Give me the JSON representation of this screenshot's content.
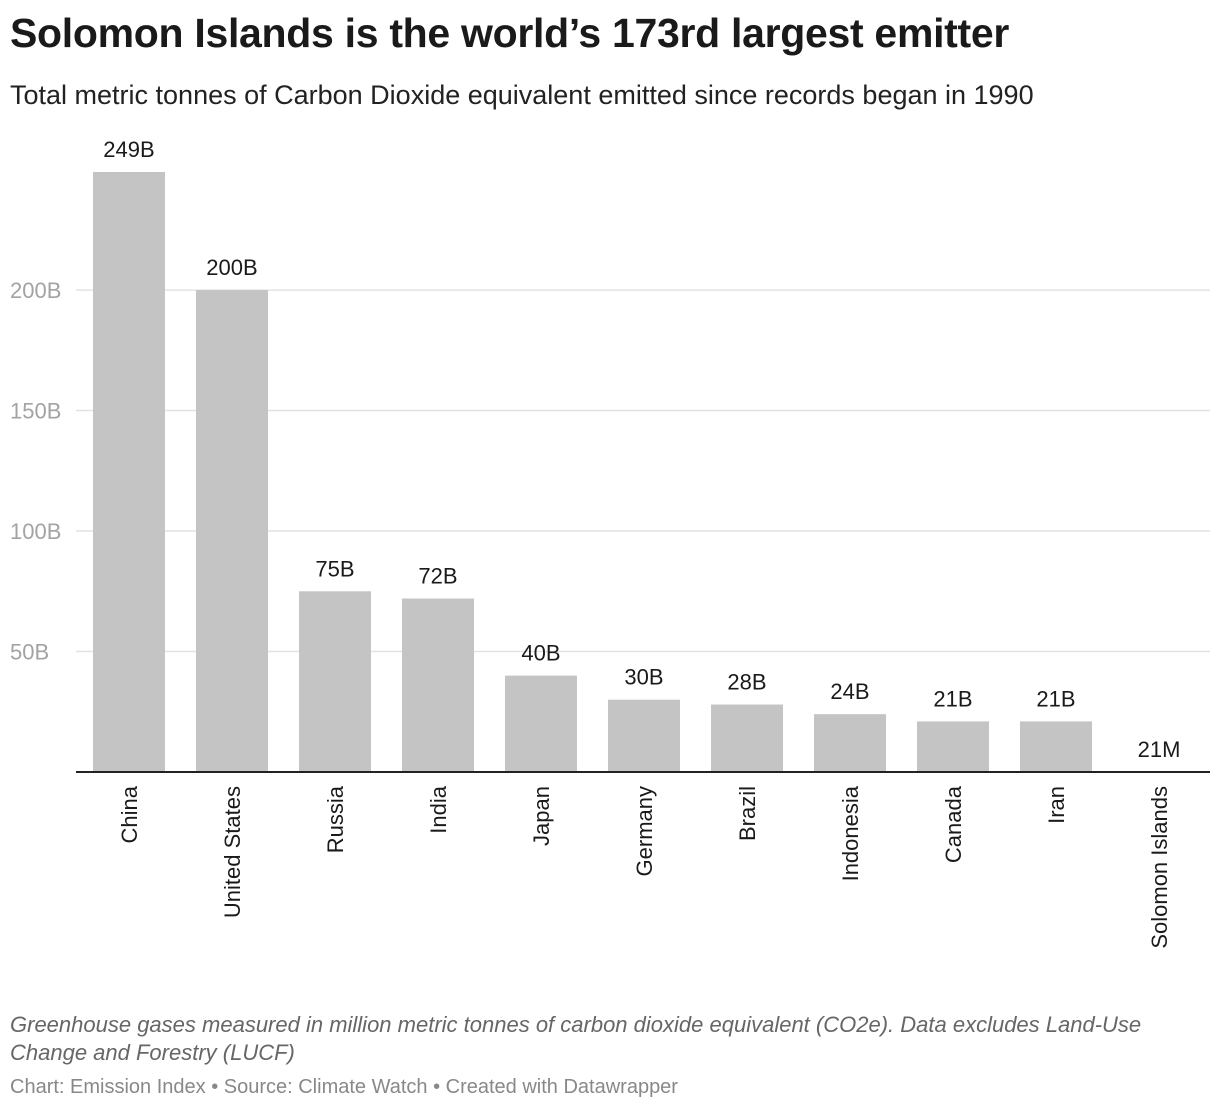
{
  "header": {
    "title": "Solomon Islands is the world’s 173rd largest emitter",
    "subtitle": "Total metric tonnes of Carbon Dioxide equivalent emitted since records began in 1990"
  },
  "footer": {
    "notes": "Greenhouse gases measured in million metric tonnes of carbon dioxide equivalent (CO2e). Data excludes Land-Use Change and Forestry (LUCF)",
    "source": "Chart: Emission Index • Source: Climate Watch • Created with Datawrapper"
  },
  "chart_data": {
    "type": "bar",
    "categories": [
      "China",
      "United States",
      "Russia",
      "India",
      "Japan",
      "Germany",
      "Brazil",
      "Indonesia",
      "Canada",
      "Iran",
      "Solomon Islands"
    ],
    "values": [
      249000,
      200000,
      75000,
      72000,
      40000,
      30000,
      28000,
      24000,
      21000,
      21000,
      21
    ],
    "data_labels": [
      "249B",
      "200B",
      "75B",
      "72B",
      "40B",
      "30B",
      "28B",
      "24B",
      "21B",
      "21B",
      "21M"
    ],
    "yticks": [
      50000,
      100000,
      150000,
      200000
    ],
    "ytick_labels": [
      "50B",
      "100B",
      "150B",
      "200B"
    ],
    "ylim": [
      0,
      249000
    ],
    "grid": true,
    "bar_color": "#c4c4c4",
    "gridline_color": "#e2e2e2",
    "tick_label_color": "#a3a3a3"
  }
}
